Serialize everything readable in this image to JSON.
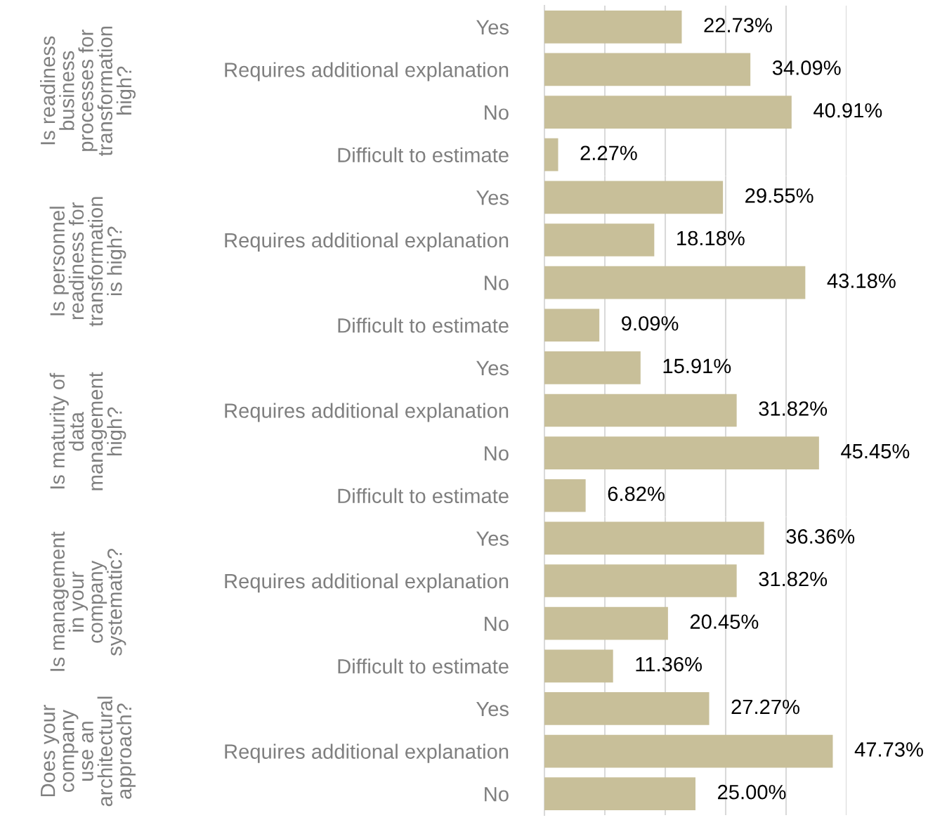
{
  "chart_data": [
    {
      "type": "bar",
      "orientation": "horizontal",
      "title": "Is readiness\nbusiness\nprocesses for\ntransformation\nhigh?",
      "categories": [
        "Yes",
        "Requires additional explanation",
        "No",
        "Difficult to estimate"
      ],
      "values": [
        22.73,
        34.09,
        40.91,
        2.27
      ],
      "value_labels": [
        "22.73%",
        "34.09%",
        "40.91%",
        "2.27%"
      ],
      "color": "#c8bf99",
      "xticks": [
        {
          "value": 10,
          "label": null
        },
        {
          "value": 20,
          "label": null
        },
        {
          "value": 30,
          "label": null
        },
        {
          "value": 40,
          "label": null
        },
        {
          "value": 50,
          "label": null
        }
      ],
      "grid": "x",
      "tick_labels": "y"
    },
    {
      "type": "bar",
      "orientation": "horizontal",
      "title": "Is personnel\nreadiness for\ntransformation\nis high?",
      "categories": [
        "Yes",
        "Requires additional explanation",
        "No",
        "Difficult to estimate"
      ],
      "values": [
        29.55,
        18.18,
        43.18,
        9.09
      ],
      "value_labels": [
        "29.55%",
        "18.18%",
        "43.18%",
        "9.09%"
      ],
      "color": "#c8bf99",
      "xticks": [
        {
          "value": 10,
          "label": null
        },
        {
          "value": 20,
          "label": null
        },
        {
          "value": 30,
          "label": null
        },
        {
          "value": 40,
          "label": null
        },
        {
          "value": 50,
          "label": null
        }
      ],
      "grid": "x",
      "tick_labels": "y"
    },
    {
      "type": "bar",
      "orientation": "horizontal",
      "title": "Is maturity of\ndata\nmanagement\nhigh?",
      "categories": [
        "Yes",
        "Requires additional explanation",
        "No",
        "Difficult to estimate"
      ],
      "values": [
        15.91,
        31.82,
        45.45,
        6.82
      ],
      "value_labels": [
        "15.91%",
        "31.82%",
        "45.45%",
        "6.82%"
      ],
      "color": "#c8bf99",
      "xticks": [
        {
          "value": 10,
          "label": null
        },
        {
          "value": 20,
          "label": null
        },
        {
          "value": 30,
          "label": null
        },
        {
          "value": 40,
          "label": null
        },
        {
          "value": 50,
          "label": null
        }
      ],
      "grid": "x",
      "tick_labels": "y"
    },
    {
      "type": "bar",
      "orientation": "horizontal",
      "title": "Is management\nin your\ncompany\nsystematic?",
      "categories": [
        "Yes",
        "Requires additional explanation",
        "No",
        "Difficult to estimate"
      ],
      "values": [
        36.36,
        31.82,
        20.45,
        11.36
      ],
      "value_labels": [
        "36.36%",
        "31.82%",
        "20.45%",
        "11.36%"
      ],
      "color": "#c8bf99",
      "xticks": [
        {
          "value": 10,
          "label": null
        },
        {
          "value": 20,
          "label": null
        },
        {
          "value": 30,
          "label": null
        },
        {
          "value": 40,
          "label": null
        },
        {
          "value": 50,
          "label": null
        }
      ],
      "grid": "x",
      "tick_labels": "y"
    },
    {
      "type": "bar",
      "orientation": "horizontal",
      "title": "Does your\ncompany\nuse an\narchitectural\napproach?",
      "categories": [
        "Yes",
        "Requires additional explanation",
        "No"
      ],
      "values": [
        27.27,
        47.73,
        25.0
      ],
      "value_labels": [
        "27.27%",
        "47.73%",
        "25.00%"
      ],
      "color": "#c8bf99",
      "xticks": [
        {
          "value": 10,
          "label": null
        },
        {
          "value": 20,
          "label": null
        },
        {
          "value": 30,
          "label": null
        },
        {
          "value": 40,
          "label": null
        },
        {
          "value": 50,
          "label": null
        }
      ],
      "grid": "x",
      "tick_labels": "y"
    }
  ]
}
